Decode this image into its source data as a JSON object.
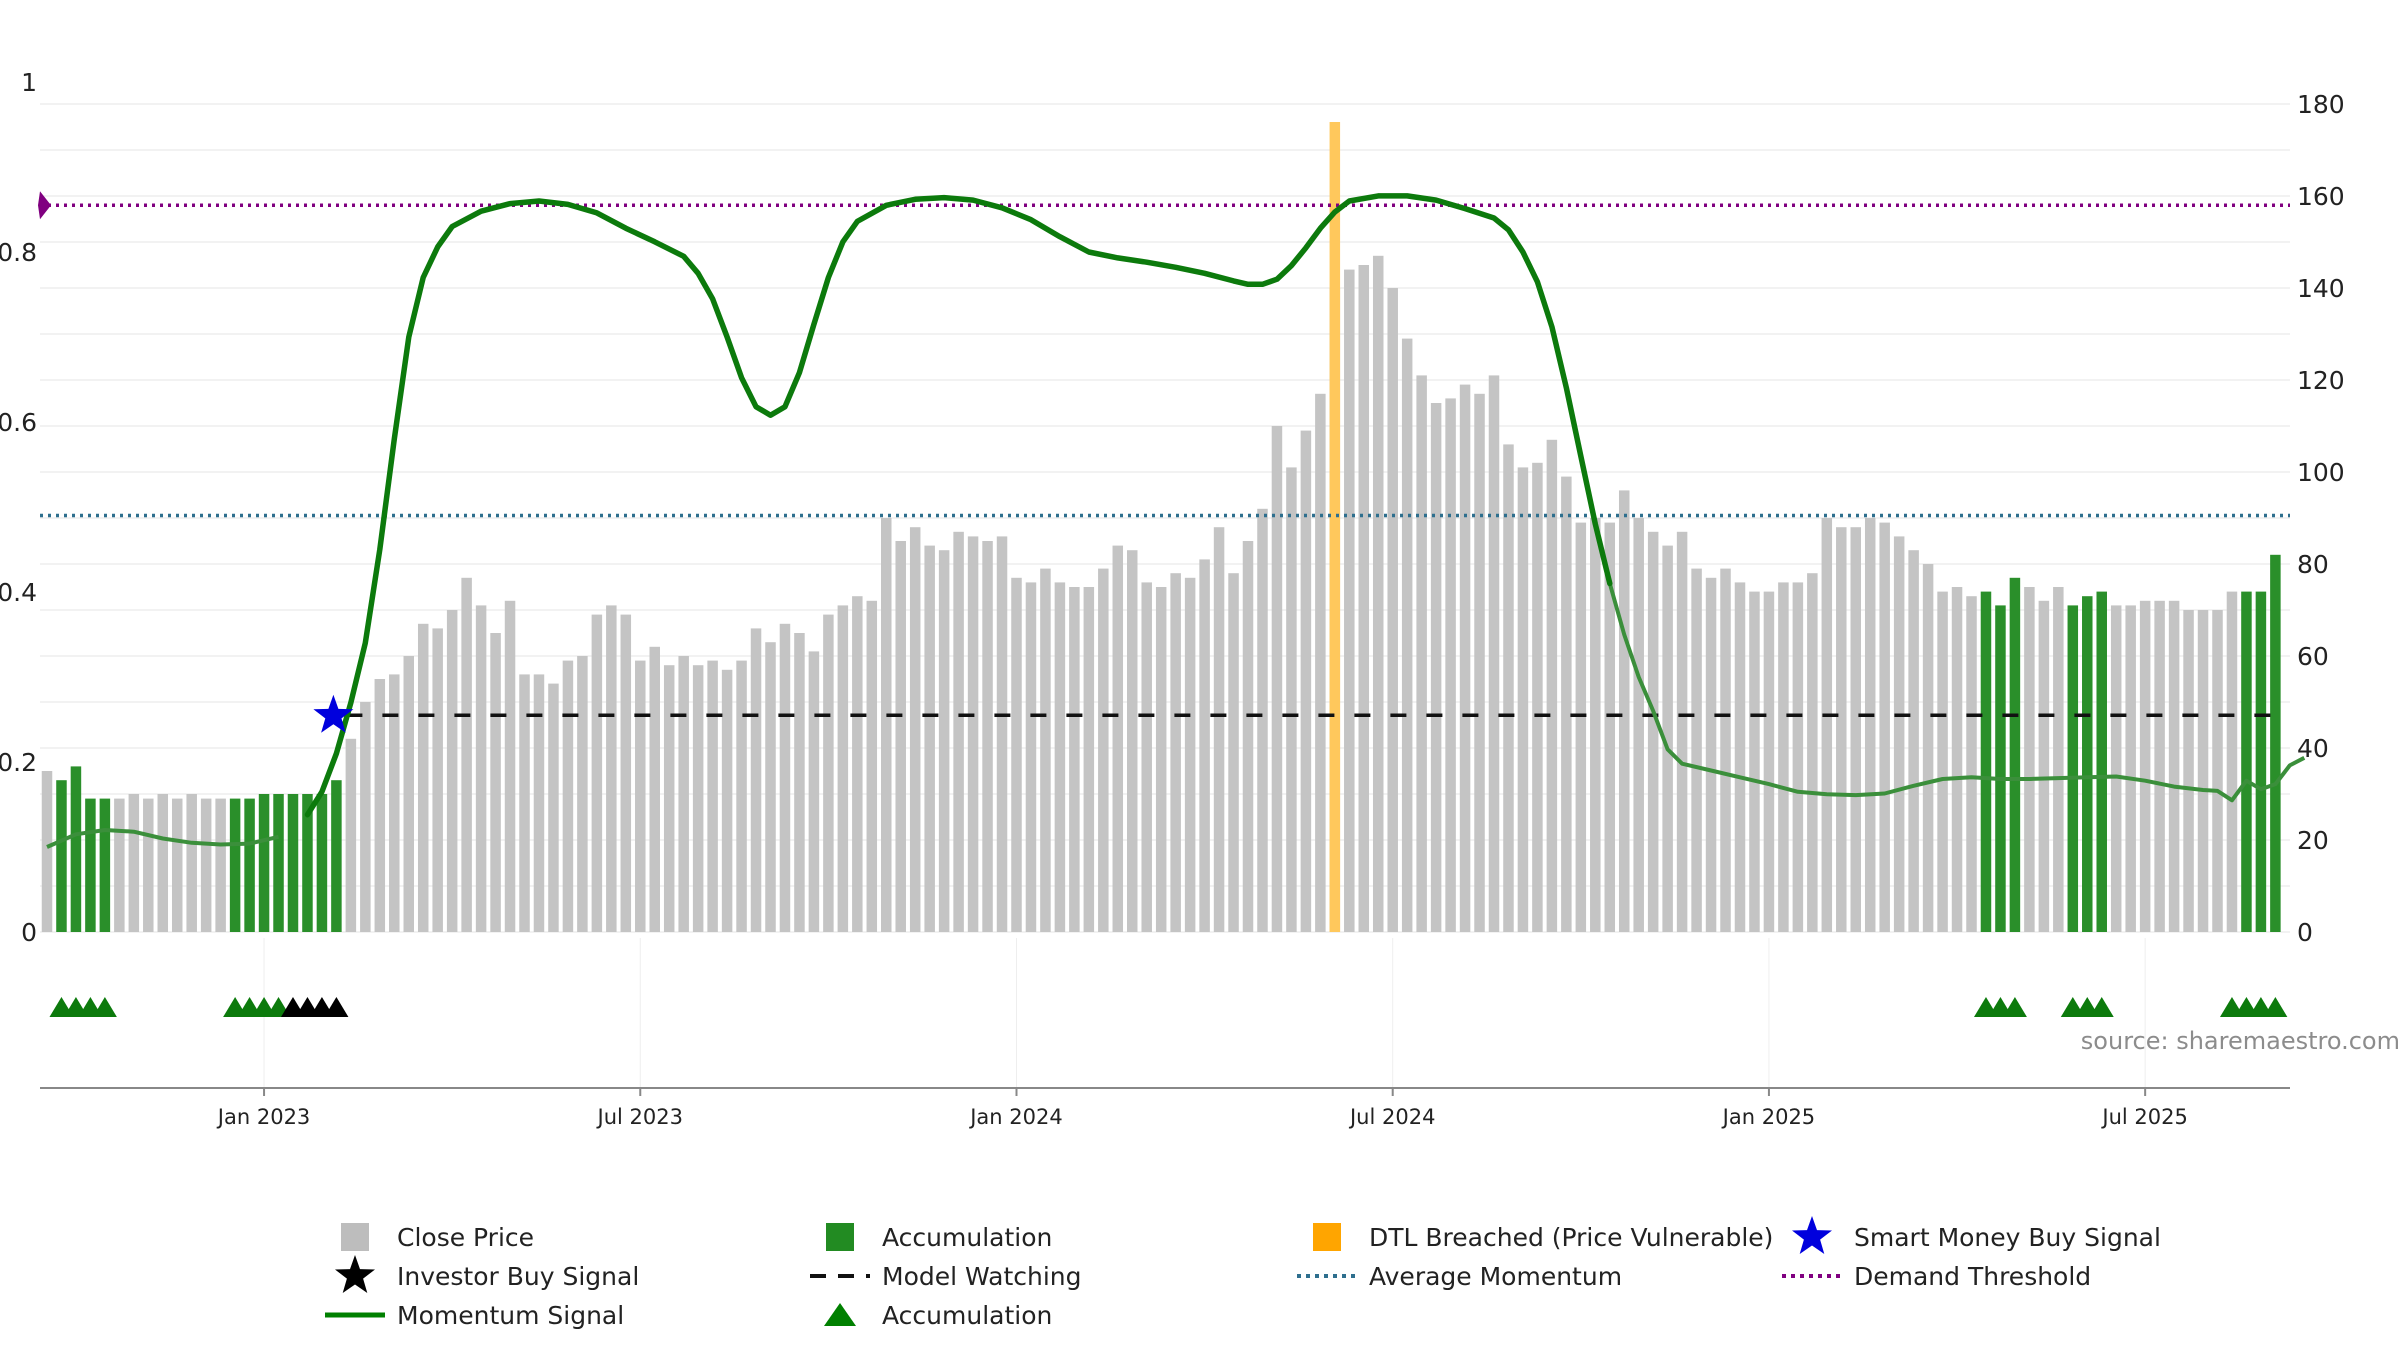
{
  "chart_data": {
    "type": "bar",
    "title": "",
    "source": "source: sharemaestro.com",
    "left_axis": {
      "ticks": [
        0,
        0.2,
        0.4,
        0.6,
        0.8,
        1
      ],
      "tick_labels": [
        "0",
        "0.2",
        "0.4",
        "0.6",
        "0.8",
        "1"
      ],
      "range": [
        0,
        1
      ]
    },
    "right_axis": {
      "ticks": [
        0,
        20,
        40,
        60,
        80,
        100,
        120,
        140,
        160,
        180
      ],
      "tick_labels": [
        "0",
        "20",
        "40",
        "60",
        "80",
        "100",
        "120",
        "140",
        "160",
        "180"
      ],
      "range": [
        0,
        180
      ]
    },
    "x_axis": {
      "tick_labels": [
        "Jan 2023",
        "Jul 2023",
        "Jan 2024",
        "Jul 2024",
        "Jan 2025",
        "Jul 2025"
      ],
      "tick_weeks": [
        15,
        41,
        67,
        93,
        119,
        145
      ]
    },
    "close_price_weekly": [
      35,
      33,
      36,
      29,
      29,
      29,
      30,
      29,
      30,
      29,
      30,
      29,
      29,
      29,
      29,
      30,
      30,
      30,
      30,
      30,
      33,
      42,
      50,
      55,
      56,
      60,
      67,
      66,
      70,
      77,
      71,
      65,
      72,
      56,
      56,
      54,
      59,
      60,
      69,
      71,
      69,
      59,
      62,
      58,
      60,
      58,
      59,
      57,
      59,
      66,
      63,
      67,
      65,
      61,
      69,
      71,
      73,
      72,
      90,
      85,
      88,
      84,
      83,
      87,
      86,
      85,
      86,
      77,
      76,
      79,
      76,
      75,
      75,
      79,
      84,
      83,
      76,
      75,
      78,
      77,
      81,
      88,
      78,
      85,
      92,
      110,
      101,
      109,
      117,
      140,
      144,
      145,
      147,
      140,
      129,
      121,
      115,
      116,
      119,
      117,
      121,
      106,
      101,
      102,
      107,
      99,
      89,
      90,
      89,
      96,
      90,
      87,
      84,
      87,
      79,
      77,
      79,
      76,
      74,
      74,
      76,
      76,
      78,
      90,
      88,
      88,
      90,
      89,
      86,
      83,
      80,
      74,
      75,
      73,
      74,
      71,
      77,
      75,
      72,
      75,
      71,
      73,
      74,
      71,
      71,
      72,
      72,
      72,
      70,
      70,
      70,
      74,
      74,
      74,
      82
    ],
    "accumulation_weeks": [
      1,
      2,
      3,
      4,
      13,
      14,
      15,
      16,
      17,
      18,
      19,
      20,
      134,
      135,
      136,
      140,
      141,
      142,
      152,
      153,
      154
    ],
    "dtl_breached_weeks": [
      89
    ],
    "momentum_signal_points": [
      [
        0,
        0.1
      ],
      [
        2,
        0.115
      ],
      [
        4,
        0.12
      ],
      [
        6,
        0.118
      ],
      [
        8,
        0.11
      ],
      [
        10,
        0.105
      ],
      [
        12,
        0.103
      ],
      [
        14,
        0.104
      ],
      [
        16,
        0.112
      ],
      [
        18,
        0.138
      ],
      [
        19,
        0.165
      ],
      [
        20,
        0.21
      ],
      [
        21,
        0.27
      ],
      [
        22,
        0.34
      ],
      [
        23,
        0.45
      ],
      [
        24,
        0.58
      ],
      [
        25,
        0.7
      ],
      [
        26,
        0.77
      ],
      [
        27,
        0.806
      ],
      [
        28,
        0.83
      ],
      [
        30,
        0.848
      ],
      [
        32,
        0.857
      ],
      [
        34,
        0.86
      ],
      [
        36,
        0.856
      ],
      [
        38,
        0.846
      ],
      [
        40,
        0.828
      ],
      [
        42,
        0.812
      ],
      [
        44,
        0.795
      ],
      [
        45,
        0.775
      ],
      [
        46,
        0.745
      ],
      [
        47,
        0.7
      ],
      [
        48,
        0.652
      ],
      [
        49,
        0.618
      ],
      [
        50,
        0.608
      ],
      [
        51,
        0.618
      ],
      [
        52,
        0.658
      ],
      [
        53,
        0.715
      ],
      [
        54,
        0.77
      ],
      [
        55,
        0.812
      ],
      [
        56,
        0.836
      ],
      [
        58,
        0.855
      ],
      [
        60,
        0.862
      ],
      [
        62,
        0.864
      ],
      [
        64,
        0.861
      ],
      [
        66,
        0.852
      ],
      [
        68,
        0.838
      ],
      [
        70,
        0.818
      ],
      [
        72,
        0.8
      ],
      [
        74,
        0.793
      ],
      [
        76,
        0.788
      ],
      [
        78,
        0.782
      ],
      [
        80,
        0.775
      ],
      [
        82,
        0.766
      ],
      [
        83,
        0.762
      ],
      [
        84,
        0.762
      ],
      [
        85,
        0.768
      ],
      [
        86,
        0.784
      ],
      [
        87,
        0.805
      ],
      [
        88,
        0.828
      ],
      [
        89,
        0.847
      ],
      [
        90,
        0.86
      ],
      [
        92,
        0.866
      ],
      [
        94,
        0.866
      ],
      [
        96,
        0.861
      ],
      [
        98,
        0.851
      ],
      [
        100,
        0.84
      ],
      [
        101,
        0.826
      ],
      [
        102,
        0.8
      ],
      [
        103,
        0.765
      ],
      [
        104,
        0.712
      ],
      [
        105,
        0.64
      ],
      [
        106,
        0.56
      ],
      [
        107,
        0.48
      ],
      [
        108,
        0.41
      ],
      [
        109,
        0.35
      ],
      [
        110,
        0.3
      ],
      [
        111,
        0.26
      ],
      [
        112,
        0.215
      ],
      [
        113,
        0.198
      ],
      [
        115,
        0.19
      ],
      [
        117,
        0.182
      ],
      [
        119,
        0.174
      ],
      [
        121,
        0.165
      ],
      [
        123,
        0.162
      ],
      [
        125,
        0.161
      ],
      [
        127,
        0.163
      ],
      [
        129,
        0.172
      ],
      [
        131,
        0.18
      ],
      [
        133,
        0.182
      ],
      [
        135,
        0.18
      ],
      [
        137,
        0.18
      ],
      [
        139,
        0.181
      ],
      [
        141,
        0.182
      ],
      [
        143,
        0.183
      ],
      [
        145,
        0.178
      ],
      [
        147,
        0.171
      ],
      [
        149,
        0.167
      ],
      [
        150,
        0.166
      ],
      [
        151,
        0.155
      ],
      [
        152,
        0.178
      ],
      [
        153,
        0.168
      ],
      [
        154,
        0.174
      ],
      [
        155,
        0.196
      ],
      [
        156,
        0.205
      ]
    ],
    "model_watching_level": 0.255,
    "model_watching_start_week": 20,
    "average_momentum": 0.49,
    "demand_threshold": 0.855,
    "smart_money_buy_signals": [
      {
        "week": 20,
        "value": 0.252
      }
    ],
    "accumulation_triangle_weeks": [
      1,
      2,
      3,
      4,
      13,
      14,
      15,
      16,
      134,
      135,
      136,
      140,
      141,
      142,
      151,
      152,
      153,
      154
    ],
    "investor_buy_signal_weeks": [
      17,
      18,
      19,
      20
    ],
    "legend": [
      {
        "label": "Close Price",
        "kind": "square",
        "color": "#bdbdbd"
      },
      {
        "label": "Accumulation",
        "kind": "square",
        "color": "#228b22"
      },
      {
        "label": "DTL Breached (Price Vulnerable)",
        "kind": "square",
        "color": "#ffa500"
      },
      {
        "label": "Smart Money Buy Signal",
        "kind": "star",
        "color": "#0000dd"
      },
      {
        "label": "Investor Buy Signal",
        "kind": "star",
        "color": "#000000"
      },
      {
        "label": "Model Watching",
        "kind": "dash",
        "color": "#111111"
      },
      {
        "label": "Average Momentum",
        "kind": "dots",
        "color": "#2e6f8e"
      },
      {
        "label": "Demand Threshold",
        "kind": "dots",
        "color": "#800080"
      },
      {
        "label": "Momentum Signal",
        "kind": "line",
        "color": "#008000"
      },
      {
        "label": "Accumulation",
        "kind": "triangle",
        "color": "#008000"
      }
    ]
  }
}
